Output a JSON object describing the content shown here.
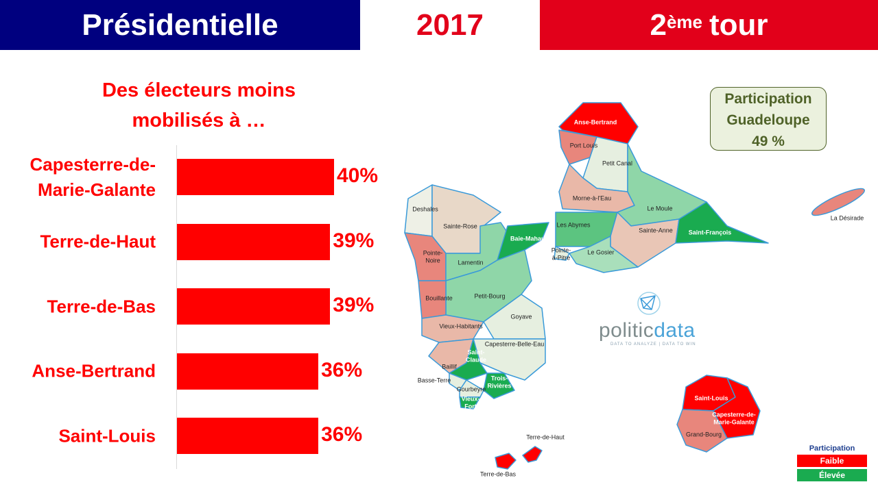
{
  "header": {
    "left": "Présidentielle",
    "middle": "2017",
    "right_number": "2",
    "right_suffix": "ème",
    "right_word": "tour"
  },
  "chart_data": {
    "type": "bar",
    "orientation": "horizontal",
    "title": "Des électeurs moins mobilisés à …",
    "categories": [
      "Capesterre-de-Marie-Galante",
      "Terre-de-Haut",
      "Terre-de-Bas",
      "Anse-Bertrand",
      "Saint-Louis"
    ],
    "values": [
      40,
      39,
      39,
      36,
      36
    ],
    "value_labels": [
      "40%",
      "39%",
      "39%",
      "36%",
      "36%"
    ],
    "color": "#ff0000"
  },
  "participation_box": {
    "lines": [
      "Participation",
      "Guadeloupe",
      "49 %"
    ]
  },
  "map": {
    "communes": [
      [
        "Anse-Bertrand"
      ],
      [
        "Port Louis"
      ],
      [
        "Petit Canal"
      ],
      [
        "Morne-à-l'Eau"
      ],
      [
        "Le Moule"
      ],
      [
        "Les Abymes"
      ],
      [
        "Sainte-Anne"
      ],
      [
        "Saint-François"
      ],
      [
        "Le Gosier"
      ],
      [
        "Pointe-",
        "à-Pitre"
      ],
      [
        "Deshales"
      ],
      [
        "Sainte-Rose"
      ],
      [
        "Pointe-",
        "Noire"
      ],
      [
        "Lamentin"
      ],
      [
        "Baie-Mahault"
      ],
      [
        "Petit-Bourg"
      ],
      [
        "Bouillante"
      ],
      [
        "Goyave"
      ],
      [
        "Vieux-Habitants"
      ],
      [
        "Capesterre-Belle-Eau"
      ],
      [
        "Saint-",
        "Claude"
      ],
      [
        "Baillif"
      ],
      [
        "Basse-Terre"
      ],
      [
        "Trois-",
        "Rivières"
      ],
      [
        "Gourbeyre"
      ],
      [
        "Vieux-",
        "Fort"
      ],
      [
        "La Désirade"
      ],
      [
        "Saint-Louis"
      ],
      [
        "Capesterre-de-",
        "Marie-Galante"
      ],
      [
        "Grand-Bourg"
      ],
      [
        "Terre-de-Haut"
      ],
      [
        "Terre-de-Bas"
      ]
    ]
  },
  "logo": {
    "name_a": "politic",
    "name_b": "data",
    "tagline": "DATA TO ANALYZE | DATA TO WIN"
  },
  "legend": {
    "title": "Participation",
    "items": [
      "Faible",
      "Élevée"
    ]
  }
}
